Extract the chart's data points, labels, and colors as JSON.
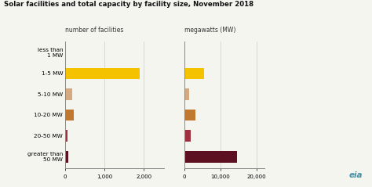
{
  "title": "Solar facilities and total capacity by facility size, November 2018",
  "categories": [
    "less than\n1 MW",
    "1-5 MW",
    "5-10 MW",
    "10-20 MW",
    "20-50 MW",
    "greater than\n50 MW"
  ],
  "count_values": [
    15,
    1900,
    175,
    210,
    55,
    90
  ],
  "mw_values": [
    10,
    5500,
    1300,
    3200,
    1900,
    14500
  ],
  "bar_colors_count": [
    "#e8c86e",
    "#f5c200",
    "#d4a880",
    "#c07830",
    "#a03040",
    "#5c1020"
  ],
  "bar_colors_mw": [
    "#e8c86e",
    "#f5c200",
    "#d4a880",
    "#c07830",
    "#a03040",
    "#5c1020"
  ],
  "count_xlim": [
    0,
    2500
  ],
  "mw_xlim": [
    0,
    22000
  ],
  "count_xticks": [
    0,
    1000,
    2000
  ],
  "mw_xticks": [
    0,
    10000,
    20000
  ],
  "count_xlabel": "number of facilities",
  "mw_xlabel": "megawatts (MW)",
  "bg_color": "#f5f5f0",
  "eia_color": "#4a90a4"
}
